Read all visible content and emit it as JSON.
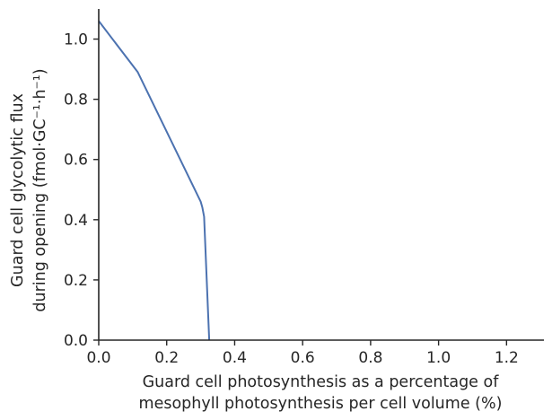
{
  "chart_data": {
    "type": "line",
    "title": "",
    "xlabel_lines": [
      "Guard cell photosynthesis as a percentage of",
      "mesophyll photosynthesis per cell volume (%)"
    ],
    "ylabel_lines": [
      "Guard cell glycolytic flux",
      "during opening (fmol·GC⁻¹·h⁻¹)"
    ],
    "xlim": [
      0,
      1.31
    ],
    "ylim": [
      0,
      1.1
    ],
    "xticks": [
      0.0,
      0.2,
      0.4,
      0.6,
      0.8,
      1.0,
      1.2
    ],
    "xtick_labels": [
      "0.0",
      "0.2",
      "0.4",
      "0.6",
      "0.8",
      "1.0",
      "1.2"
    ],
    "yticks": [
      0.0,
      0.2,
      0.4,
      0.6,
      0.8,
      1.0
    ],
    "ytick_labels": [
      "0.0",
      "0.2",
      "0.4",
      "0.6",
      "0.8",
      "1.0"
    ],
    "grid": false,
    "series": [
      {
        "name": "glycolytic flux",
        "color": "#4c72b0",
        "x": [
          0.0,
          0.115,
          0.3,
          0.305,
          0.31,
          0.325
        ],
        "y": [
          1.06,
          0.89,
          0.46,
          0.44,
          0.41,
          0.0
        ]
      }
    ]
  }
}
